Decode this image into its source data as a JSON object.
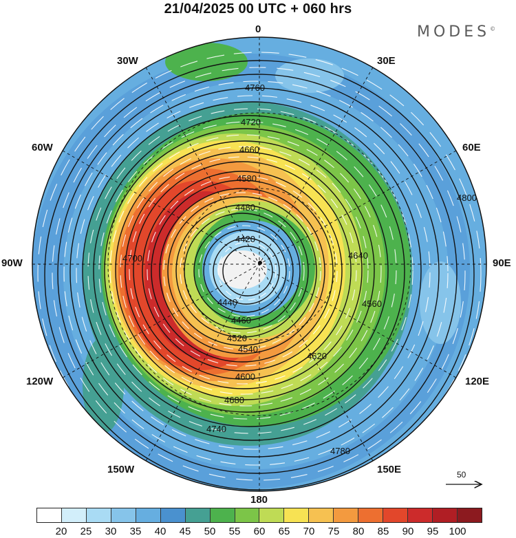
{
  "title": "21/04/2025  00 UTC  + 060 hrs",
  "brand": {
    "text": "MODES",
    "mark": "©"
  },
  "longitude_labels": {
    "top": "0",
    "bottom": "180",
    "left": "90W",
    "right": "90E",
    "upper_left": "30W",
    "upper_right": "30E",
    "mid_left": "60W",
    "mid_right": "60E",
    "lower_left": "120W",
    "lower_right": "120E",
    "bottom_left": "150W",
    "bottom_right": "150E"
  },
  "colorbar": {
    "colors": [
      "#ffffff",
      "#d2eefa",
      "#a9dbf4",
      "#86c4ea",
      "#66aee0",
      "#4a91cf",
      "#45a093",
      "#4db24d",
      "#7cc548",
      "#bfdb55",
      "#f7e253",
      "#f6c151",
      "#f39a3f",
      "#ed6f30",
      "#e2472b",
      "#cc2b2b",
      "#b01e24",
      "#8c1a1f"
    ],
    "tick_labels": [
      "20",
      "25",
      "30",
      "35",
      "40",
      "45",
      "50",
      "55",
      "60",
      "65",
      "70",
      "75",
      "80",
      "85",
      "90",
      "95",
      "100"
    ]
  },
  "contour_labels": [
    "4760",
    "4720",
    "4660",
    "4580",
    "4480",
    "4420",
    "4440",
    "4460",
    "4520",
    "4540",
    "4600",
    "4640",
    "4680",
    "4700",
    "4740",
    "4780",
    "4800",
    "4560",
    "4620"
  ],
  "wind_reference": {
    "label": "50"
  }
}
